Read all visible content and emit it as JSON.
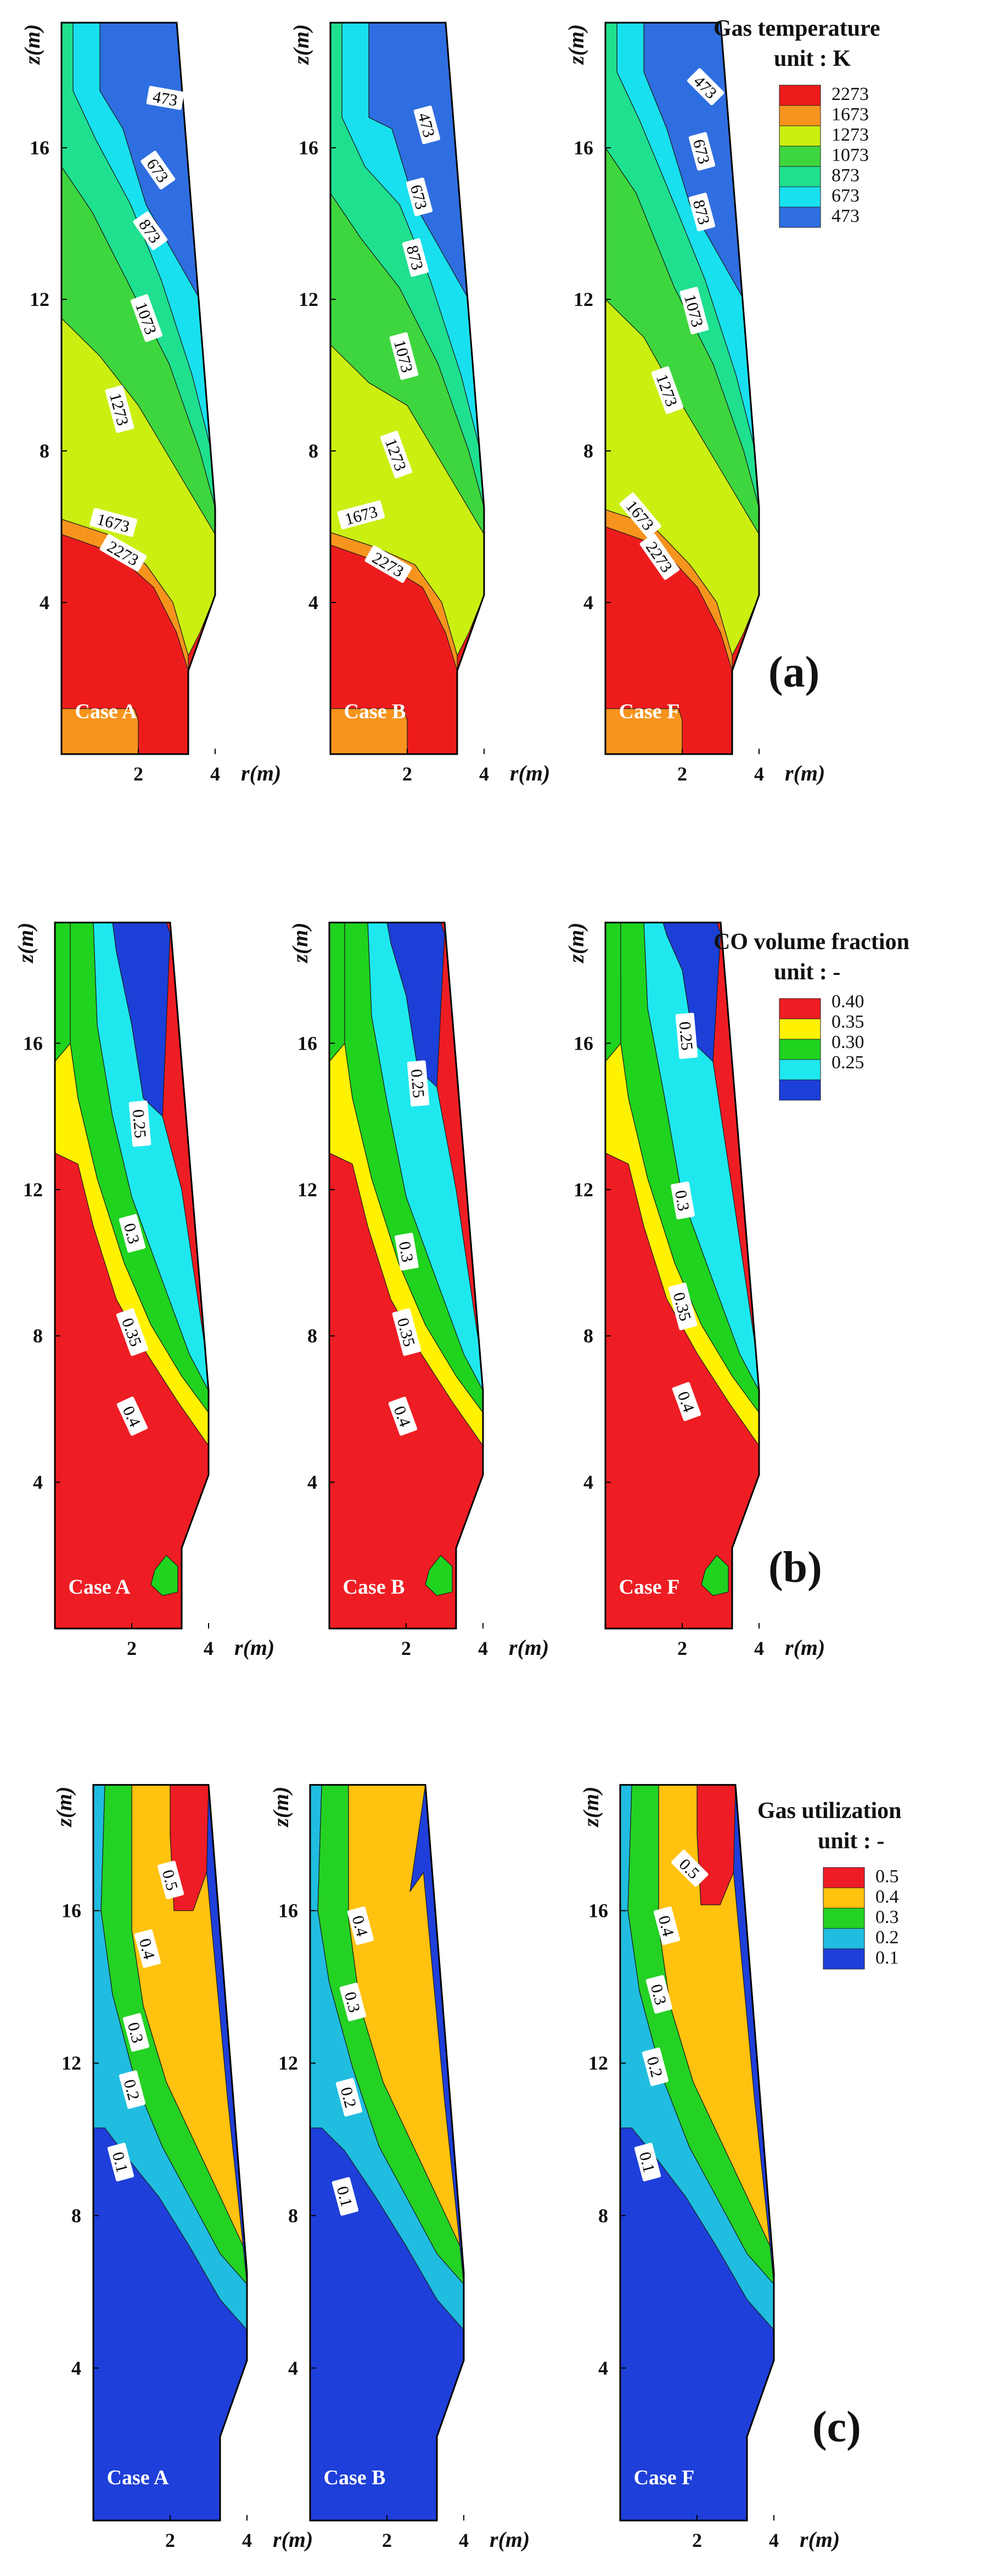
{
  "figure": {
    "axis_labels": {
      "z": "z(m)",
      "r": "r(m)"
    },
    "z_ticks": [
      "4",
      "8",
      "12",
      "16"
    ],
    "r_ticks": [
      "2",
      "4"
    ]
  },
  "chart_data": [
    {
      "type": "heatmap",
      "panel_label": "(a)",
      "legend_title": "Gas temperature",
      "legend_unit": "unit : K",
      "legend_levels": [
        {
          "label": "2273",
          "color": "#ed1c1c"
        },
        {
          "label": "1673",
          "color": "#f7941d"
        },
        {
          "label": "1273",
          "color": "#ccef12"
        },
        {
          "label": "1073",
          "color": "#3ed63e"
        },
        {
          "label": "873",
          "color": "#1fe08f"
        },
        {
          "label": "673",
          "color": "#18e0ee"
        },
        {
          "label": "473",
          "color": "#2f6ee0"
        }
      ],
      "xlabel": "r(m)",
      "ylabel": "z(m)",
      "xlim": [
        0,
        4.5
      ],
      "ylim": [
        0,
        19.5
      ],
      "plots": [
        {
          "case": "Case A",
          "contour_labels": [
            {
              "text": "473",
              "r": 2.7,
              "z": 17.3,
              "rot": 10
            },
            {
              "text": "673",
              "r": 2.5,
              "z": 15.4,
              "rot": 55
            },
            {
              "text": "873",
              "r": 2.3,
              "z": 13.8,
              "rot": 55
            },
            {
              "text": "1073",
              "r": 2.2,
              "z": 11.5,
              "rot": 70
            },
            {
              "text": "1273",
              "r": 1.5,
              "z": 9.1,
              "rot": 75
            },
            {
              "text": "1673",
              "r": 1.35,
              "z": 6.1,
              "rot": 15
            },
            {
              "text": "2273",
              "r": 1.6,
              "z": 5.3,
              "rot": 30
            }
          ]
        },
        {
          "case": "Case B",
          "contour_labels": [
            {
              "text": "473",
              "r": 2.5,
              "z": 16.6,
              "rot": 75
            },
            {
              "text": "673",
              "r": 2.3,
              "z": 14.7,
              "rot": 75
            },
            {
              "text": "873",
              "r": 2.2,
              "z": 13.1,
              "rot": 75
            },
            {
              "text": "1073",
              "r": 1.9,
              "z": 10.5,
              "rot": 75
            },
            {
              "text": "1273",
              "r": 1.7,
              "z": 7.9,
              "rot": 70
            },
            {
              "text": "1673",
              "r": 0.8,
              "z": 6.3,
              "rot": -15
            },
            {
              "text": "2273",
              "r": 1.5,
              "z": 5.0,
              "rot": 30
            }
          ]
        },
        {
          "case": "Case F",
          "contour_labels": [
            {
              "text": "473",
              "r": 2.6,
              "z": 17.6,
              "rot": 45
            },
            {
              "text": "673",
              "r": 2.5,
              "z": 15.9,
              "rot": 75
            },
            {
              "text": "873",
              "r": 2.5,
              "z": 14.3,
              "rot": 75
            },
            {
              "text": "1073",
              "r": 2.3,
              "z": 11.7,
              "rot": 75
            },
            {
              "text": "1273",
              "r": 1.6,
              "z": 9.6,
              "rot": 70
            },
            {
              "text": "1673",
              "r": 0.9,
              "z": 6.3,
              "rot": 50
            },
            {
              "text": "2273",
              "r": 1.4,
              "z": 5.2,
              "rot": 55
            }
          ]
        }
      ]
    },
    {
      "type": "heatmap",
      "panel_label": "(b)",
      "legend_title": "CO volume fraction",
      "legend_unit": "unit : -",
      "legend_levels": [
        {
          "label": "0.40",
          "color": "#ee1d23"
        },
        {
          "label": "0.35",
          "color": "#fff200"
        },
        {
          "label": "0.30",
          "color": "#1fd31f"
        },
        {
          "label": "0.25",
          "color": "#1ee8ee"
        },
        {
          "label": "",
          "color": "#1c3fd8"
        }
      ],
      "xlabel": "r(m)",
      "ylabel": "z(m)",
      "xlim": [
        0,
        4.5
      ],
      "ylim": [
        0,
        19.5
      ],
      "plots": [
        {
          "case": "Case A",
          "contour_labels": [
            {
              "text": "0.25",
              "r": 2.2,
              "z": 13.8,
              "rot": 85
            },
            {
              "text": "0.3",
              "r": 2.0,
              "z": 10.8,
              "rot": 75
            },
            {
              "text": "0.35",
              "r": 2.0,
              "z": 8.1,
              "rot": 70
            },
            {
              "text": "0.4",
              "r": 2.0,
              "z": 5.8,
              "rot": 65
            }
          ]
        },
        {
          "case": "Case B",
          "contour_labels": [
            {
              "text": "0.25",
              "r": 2.3,
              "z": 14.9,
              "rot": 85
            },
            {
              "text": "0.3",
              "r": 2.0,
              "z": 10.3,
              "rot": 80
            },
            {
              "text": "0.35",
              "r": 2.0,
              "z": 8.1,
              "rot": 75
            },
            {
              "text": "0.4",
              "r": 1.9,
              "z": 5.8,
              "rot": 70
            }
          ]
        },
        {
          "case": "Case F",
          "contour_labels": [
            {
              "text": "0.25",
              "r": 2.1,
              "z": 16.2,
              "rot": 85
            },
            {
              "text": "0.3",
              "r": 2.0,
              "z": 11.7,
              "rot": 80
            },
            {
              "text": "0.35",
              "r": 2.0,
              "z": 8.8,
              "rot": 75
            },
            {
              "text": "0.4",
              "r": 2.1,
              "z": 6.2,
              "rot": 70
            }
          ]
        }
      ]
    },
    {
      "type": "heatmap",
      "panel_label": "(c)",
      "legend_title": "Gas utilization",
      "legend_unit": "unit : -",
      "legend_levels": [
        {
          "label": "0.5",
          "color": "#ee1c24"
        },
        {
          "label": "0.4",
          "color": "#ffc20e"
        },
        {
          "label": "0.3",
          "color": "#23d223"
        },
        {
          "label": "0.2",
          "color": "#20bde0"
        },
        {
          "label": "0.1",
          "color": "#1e3fd9"
        }
      ],
      "xlabel": "r(m)",
      "ylabel": "z(m)",
      "xlim": [
        0,
        4.5
      ],
      "ylim": [
        0,
        19.5
      ],
      "plots": [
        {
          "case": "Case A",
          "contour_labels": [
            {
              "text": "0.5",
              "r": 2.0,
              "z": 16.8,
              "rot": 75
            },
            {
              "text": "0.4",
              "r": 1.4,
              "z": 15.0,
              "rot": 75
            },
            {
              "text": "0.3",
              "r": 1.1,
              "z": 12.8,
              "rot": 75
            },
            {
              "text": "0.2",
              "r": 1.0,
              "z": 11.3,
              "rot": 75
            },
            {
              "text": "0.1",
              "r": 0.7,
              "z": 9.4,
              "rot": 75
            }
          ]
        },
        {
          "case": "Case B",
          "contour_labels": [
            {
              "text": "0.4",
              "r": 1.3,
              "z": 15.6,
              "rot": 75
            },
            {
              "text": "0.3",
              "r": 1.1,
              "z": 13.6,
              "rot": 75
            },
            {
              "text": "0.2",
              "r": 1.0,
              "z": 11.1,
              "rot": 75
            },
            {
              "text": "0.1",
              "r": 0.9,
              "z": 8.5,
              "rot": 75
            }
          ]
        },
        {
          "case": "Case F",
          "contour_labels": [
            {
              "text": "0.5",
              "r": 1.8,
              "z": 17.1,
              "rot": 45
            },
            {
              "text": "0.4",
              "r": 1.2,
              "z": 15.6,
              "rot": 75
            },
            {
              "text": "0.3",
              "r": 1.0,
              "z": 13.8,
              "rot": 75
            },
            {
              "text": "0.2",
              "r": 0.9,
              "z": 11.9,
              "rot": 75
            },
            {
              "text": "0.1",
              "r": 0.7,
              "z": 9.4,
              "rot": 75
            }
          ]
        }
      ]
    }
  ]
}
